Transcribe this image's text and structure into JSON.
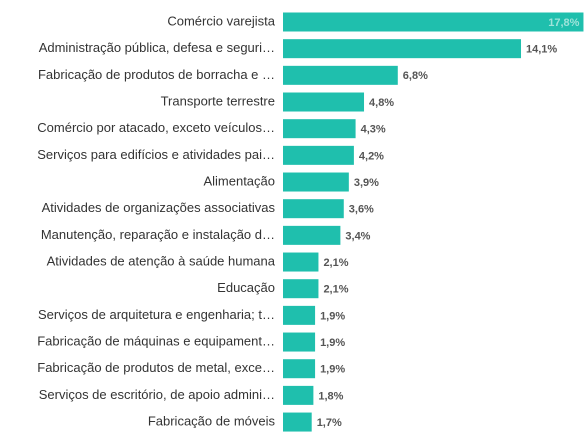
{
  "chart_data": {
    "type": "bar",
    "orientation": "horizontal",
    "color": "#1fbfad",
    "categories": [
      "Comércio varejista",
      "Administração pública, defesa e seguri…",
      "Fabricação de produtos de borracha e …",
      "Transporte terrestre",
      "Comércio por atacado, exceto veículos…",
      "Serviços para edifícios e atividades pai…",
      "Alimentação",
      "Atividades de organizações associativas",
      "Manutenção, reparação e instalação d…",
      "Atividades de atenção à saúde humana",
      "Educação",
      "Serviços de arquitetura e engenharia; t…",
      "Fabricação de máquinas e equipament…",
      "Fabricação de produtos de metal, exce…",
      "Serviços de escritório, de apoio admini…",
      "Fabricação de móveis"
    ],
    "values": [
      17.8,
      14.1,
      6.8,
      4.8,
      4.3,
      4.2,
      3.9,
      3.6,
      3.4,
      2.1,
      2.1,
      1.9,
      1.9,
      1.9,
      1.8,
      1.7
    ],
    "value_labels": [
      "17,8%",
      "14,1%",
      "6,8%",
      "4,8%",
      "4,3%",
      "4,2%",
      "3,9%",
      "3,6%",
      "3,4%",
      "2,1%",
      "2,1%",
      "1,9%",
      "1,9%",
      "1,9%",
      "1,8%",
      "1,7%"
    ]
  }
}
